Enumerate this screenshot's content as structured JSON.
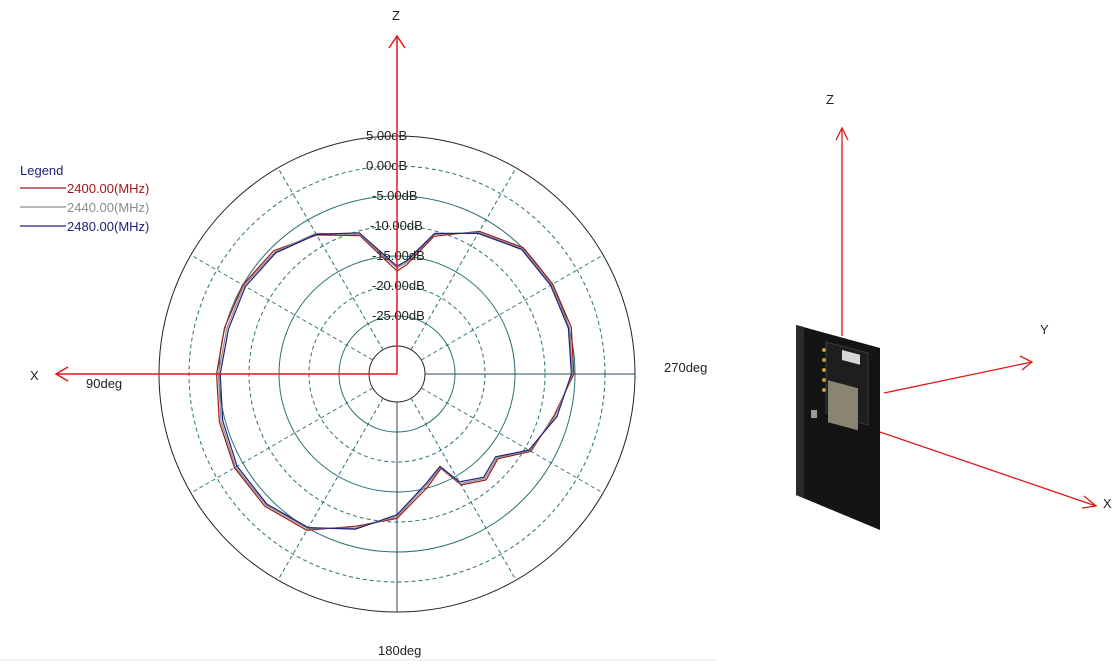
{
  "chart_data": {
    "type": "line",
    "subtype": "polar",
    "radial_unit": "dB",
    "rlim": [
      -30,
      5
    ],
    "radial_ticks": [
      "5.00dB",
      "0.00dB",
      "-5.00dB",
      "-10.00dB",
      "-15.00dB",
      "-20.00dB",
      "-25.00dB"
    ],
    "angle_labels": [
      "90deg",
      "180deg",
      "270deg"
    ],
    "legend": {
      "title": "Legend",
      "placement": "top-left"
    },
    "axes_labels": {
      "z": "Z",
      "x": "X"
    },
    "series": [
      {
        "name": "2400.00(MHz)",
        "color": "#a01818",
        "points": [
          [
            0,
            -17.5
          ],
          [
            15,
            -10.8
          ],
          [
            30,
            -7.9
          ],
          [
            45,
            -5.6
          ],
          [
            60,
            -5.0
          ],
          [
            75,
            -4.9
          ],
          [
            90,
            -4.6
          ],
          [
            105,
            -4.0
          ],
          [
            120,
            -3.4
          ],
          [
            135,
            -3.5
          ],
          [
            150,
            -4.6
          ],
          [
            165,
            -8.4
          ],
          [
            180,
            -10.6
          ],
          [
            195,
            -15.1
          ],
          [
            205,
            -17.3
          ],
          [
            210,
            -13.3
          ],
          [
            220,
            -11.6
          ],
          [
            230,
            -12.7
          ],
          [
            240,
            -8.9
          ],
          [
            255,
            -7.6
          ],
          [
            270,
            -5.2
          ],
          [
            285,
            -4.6
          ],
          [
            300,
            -4.7
          ],
          [
            315,
            -4.9
          ],
          [
            330,
            -7.2
          ],
          [
            345,
            -10.9
          ],
          [
            355,
            -16.4
          ],
          [
            360,
            -17.5
          ]
        ]
      },
      {
        "name": "2440.00(MHz)",
        "color": "#8c8c8c",
        "points": [
          [
            0,
            -17.0
          ],
          [
            15,
            -10.6
          ],
          [
            30,
            -7.6
          ],
          [
            45,
            -5.9
          ],
          [
            60,
            -5.2
          ],
          [
            75,
            -5.3
          ],
          [
            90,
            -4.9
          ],
          [
            105,
            -4.3
          ],
          [
            120,
            -3.6
          ],
          [
            135,
            -3.8
          ],
          [
            150,
            -4.9
          ],
          [
            165,
            -8.1
          ],
          [
            180,
            -10.9
          ],
          [
            195,
            -15.5
          ],
          [
            205,
            -17.5
          ],
          [
            210,
            -13.6
          ],
          [
            220,
            -11.9
          ],
          [
            230,
            -12.9
          ],
          [
            240,
            -9.1
          ],
          [
            255,
            -7.4
          ],
          [
            270,
            -5.4
          ],
          [
            285,
            -4.9
          ],
          [
            300,
            -4.9
          ],
          [
            315,
            -5.1
          ],
          [
            330,
            -7.4
          ],
          [
            345,
            -10.6
          ],
          [
            355,
            -16.0
          ],
          [
            360,
            -17.0
          ]
        ]
      },
      {
        "name": "2480.00(MHz)",
        "color": "#20207a",
        "points": [
          [
            0,
            -16.7
          ],
          [
            15,
            -10.3
          ],
          [
            30,
            -7.8
          ],
          [
            45,
            -6.1
          ],
          [
            60,
            -5.5
          ],
          [
            75,
            -5.6
          ],
          [
            90,
            -5.2
          ],
          [
            105,
            -4.6
          ],
          [
            120,
            -3.9
          ],
          [
            135,
            -4.0
          ],
          [
            150,
            -5.1
          ],
          [
            165,
            -7.9
          ],
          [
            180,
            -11.2
          ],
          [
            195,
            -15.8
          ],
          [
            205,
            -17.7
          ],
          [
            210,
            -13.9
          ],
          [
            220,
            -12.2
          ],
          [
            230,
            -13.2
          ],
          [
            240,
            -9.3
          ],
          [
            255,
            -7.1
          ],
          [
            270,
            -5.6
          ],
          [
            285,
            -5.1
          ],
          [
            300,
            -5.1
          ],
          [
            315,
            -5.3
          ],
          [
            330,
            -7.6
          ],
          [
            345,
            -10.4
          ],
          [
            355,
            -15.7
          ],
          [
            360,
            -16.7
          ]
        ]
      }
    ]
  },
  "orientation_figure": {
    "axis_labels": {
      "z": "Z",
      "y": "Y",
      "x": "X"
    },
    "axis_color": "#e01818"
  }
}
